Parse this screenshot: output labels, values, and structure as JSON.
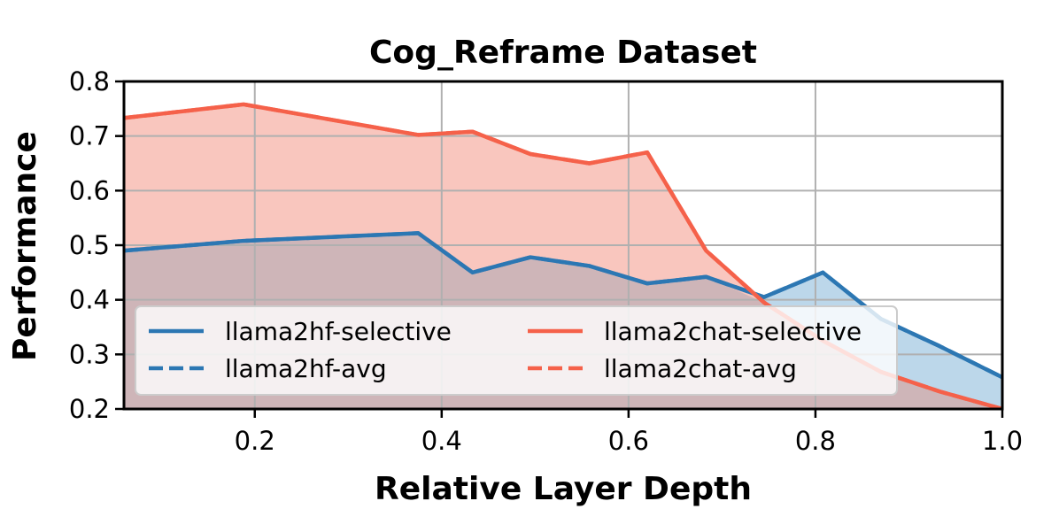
{
  "chart_data": {
    "type": "area",
    "title": "Cog_Reframe Dataset",
    "xlabel": "Relative Layer Depth",
    "ylabel": "Performance",
    "xlim": [
      0.06,
      1.0
    ],
    "ylim": [
      0.2,
      0.8
    ],
    "xticks": [
      "0.2",
      "0.4",
      "0.6",
      "0.8",
      "1.0"
    ],
    "yticks": [
      "0.2",
      "0.3",
      "0.4",
      "0.5",
      "0.6",
      "0.7",
      "0.8"
    ],
    "grid": true,
    "legend_position": "lower-left",
    "legend_columns": 2,
    "series": [
      {
        "name": "llama2hf-selective",
        "color": "#2c77b3",
        "style": "solid",
        "x": [
          0.06,
          0.188,
          0.375,
          0.433,
          0.495,
          0.558,
          0.62,
          0.683,
          0.745,
          0.808,
          0.87,
          0.933,
          1.0
        ],
        "y": [
          0.49,
          0.508,
          0.522,
          0.45,
          0.478,
          0.462,
          0.43,
          0.442,
          0.405,
          0.45,
          0.365,
          0.315,
          0.258
        ]
      },
      {
        "name": "llama2hf-avg",
        "color": "#2c77b3",
        "style": "dashed",
        "x": [
          0.06,
          0.188,
          0.375,
          0.433,
          0.495,
          0.558,
          0.62,
          0.683,
          0.745,
          0.808,
          0.87,
          0.933,
          1.0
        ],
        "y": [
          0.49,
          0.508,
          0.522,
          0.45,
          0.478,
          0.462,
          0.43,
          0.442,
          0.405,
          0.45,
          0.365,
          0.315,
          0.258
        ]
      },
      {
        "name": "llama2chat-selective",
        "color": "#f5614a",
        "style": "solid",
        "x": [
          0.06,
          0.188,
          0.375,
          0.433,
          0.495,
          0.558,
          0.62,
          0.683,
          0.745,
          0.808,
          0.87,
          0.933,
          1.0
        ],
        "y": [
          0.733,
          0.758,
          0.702,
          0.708,
          0.667,
          0.65,
          0.67,
          0.49,
          0.395,
          0.325,
          0.268,
          0.232,
          0.2
        ]
      },
      {
        "name": "llama2chat-avg",
        "color": "#f5614a",
        "style": "dashed",
        "x": [
          0.06,
          0.188,
          0.375,
          0.433,
          0.495,
          0.558,
          0.62,
          0.683,
          0.745,
          0.808,
          0.87,
          0.933,
          1.0
        ],
        "y": [
          0.733,
          0.758,
          0.702,
          0.708,
          0.667,
          0.65,
          0.67,
          0.49,
          0.395,
          0.325,
          0.268,
          0.232,
          0.2
        ]
      }
    ],
    "fill_colors": {
      "llama2hf": "#bcd7ea",
      "llama2chat": "#f9c6be",
      "overlap": "#ceb5b8"
    }
  }
}
